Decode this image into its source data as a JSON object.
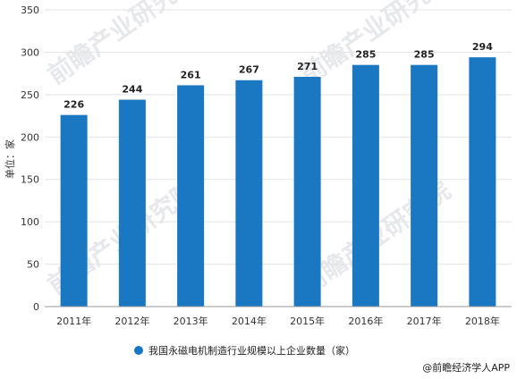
{
  "chart_data": {
    "type": "bar",
    "categories": [
      "2011年",
      "2012年",
      "2013年",
      "2014年",
      "2015年",
      "2016年",
      "2017年",
      "2018年"
    ],
    "series": [
      {
        "name": "我国永磁电机制造行业规模以上企业数量（家）",
        "values": [
          226,
          244,
          261,
          267,
          271,
          285,
          285,
          294
        ]
      }
    ],
    "ylabel": "单位：家",
    "ylim": [
      0,
      350
    ],
    "yticks": [
      0,
      50,
      100,
      150,
      200,
      250,
      300,
      350
    ],
    "grid": true,
    "legend": "bottom",
    "bar_color": "#1a78c2"
  },
  "source": "@前瞻经济学人APP",
  "watermark": "前瞻产业研究院"
}
